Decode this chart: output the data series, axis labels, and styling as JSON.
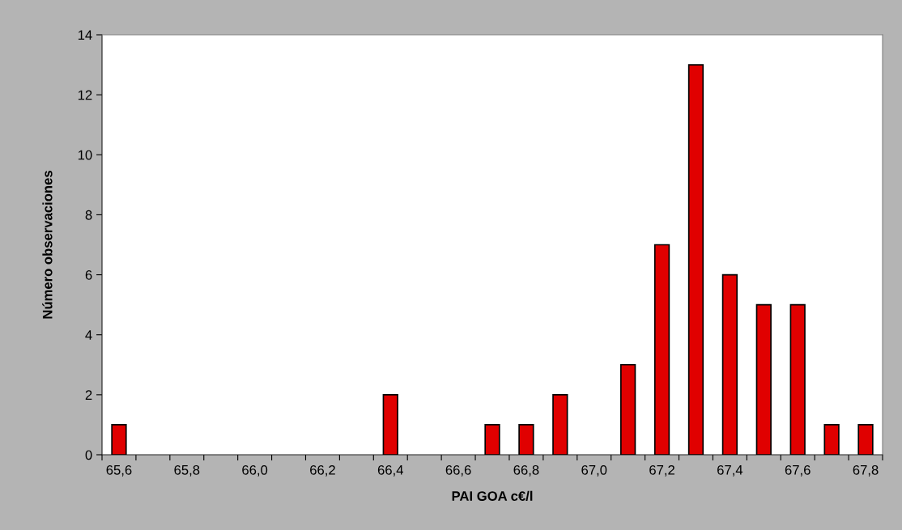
{
  "chart_data": {
    "type": "bar",
    "xlabel": "PAI GOA c€/l",
    "ylabel": "Número observaciones",
    "categories": [
      "65,6",
      null,
      "65,8",
      null,
      "66,0",
      null,
      "66,2",
      null,
      "66,4",
      null,
      "66,6",
      null,
      "66,8",
      null,
      "67,0",
      null,
      "67,2",
      null,
      "67,4",
      null,
      "67,6",
      null,
      "67,8"
    ],
    "values": [
      1,
      0,
      0,
      0,
      0,
      0,
      0,
      0,
      2,
      0,
      0,
      1,
      1,
      2,
      0,
      3,
      7,
      13,
      6,
      5,
      5,
      1,
      1
    ],
    "color": "#e00000",
    "ylim": [
      0,
      14
    ],
    "yticks": [
      0,
      2,
      4,
      6,
      8,
      10,
      12,
      14
    ],
    "grid": false,
    "legend": false
  }
}
